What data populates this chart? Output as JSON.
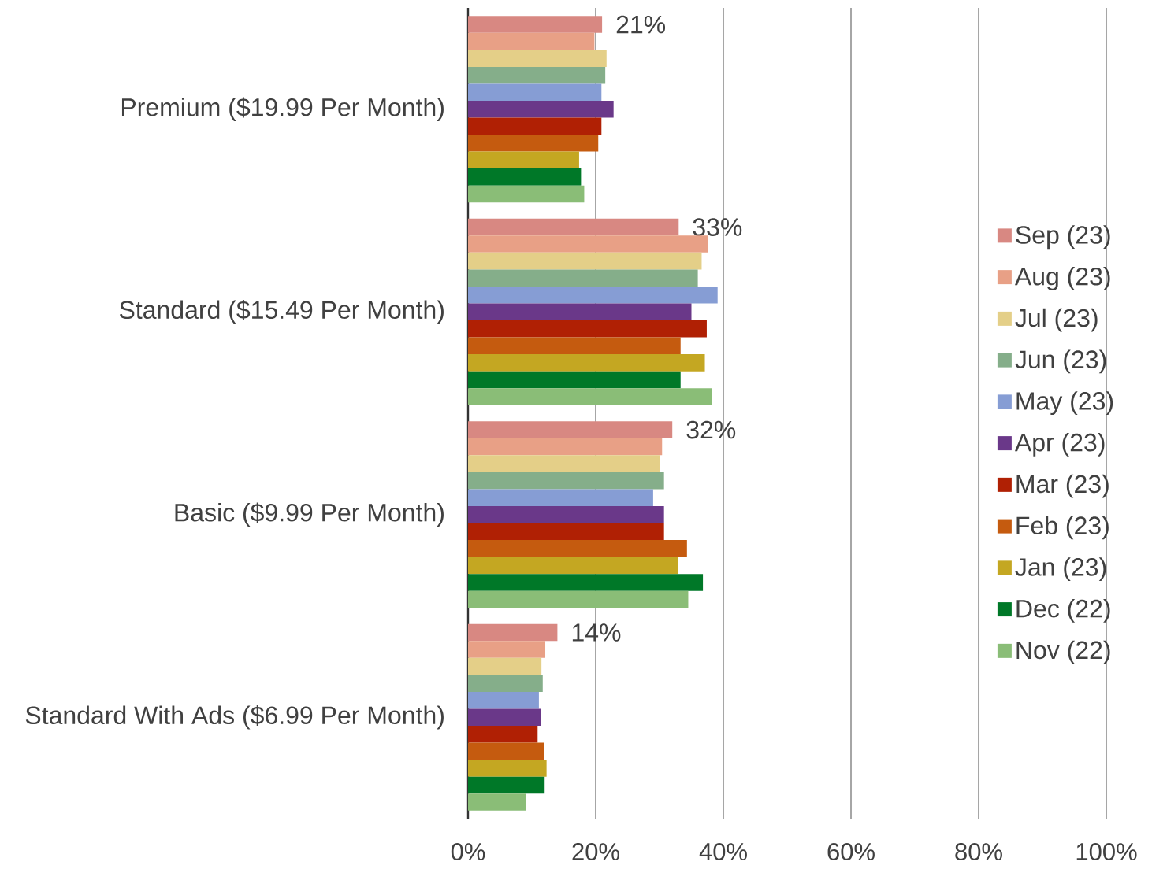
{
  "chart_data": {
    "type": "bar",
    "orientation": "horizontal",
    "categories": [
      "Premium ($19.99 Per Month)",
      "Standard ($15.49 Per Month)",
      "Basic ($9.99 Per Month)",
      "Standard With Ads ($6.99 Per Month)"
    ],
    "series": [
      {
        "name": "Sep (23)",
        "color": "#d88882",
        "values": [
          21,
          33,
          32,
          14
        ],
        "value_labels": [
          "21%",
          "33%",
          "32%",
          "14%"
        ]
      },
      {
        "name": "Aug (23)",
        "color": "#e8a086",
        "values": [
          19.8,
          37.6,
          30.4,
          12.1
        ]
      },
      {
        "name": "Jul (23)",
        "color": "#e4cf88",
        "values": [
          21.7,
          36.6,
          30.1,
          11.5
        ]
      },
      {
        "name": "Jun (23)",
        "color": "#85ae8a",
        "values": [
          21.5,
          36.0,
          30.7,
          11.7
        ]
      },
      {
        "name": "May (23)",
        "color": "#869dd4",
        "values": [
          20.9,
          39.1,
          29.0,
          11.1
        ]
      },
      {
        "name": "Apr (23)",
        "color": "#6a3889",
        "values": [
          22.8,
          35.0,
          30.7,
          11.4
        ]
      },
      {
        "name": "Mar (23)",
        "color": "#b02004",
        "values": [
          20.9,
          37.4,
          30.7,
          10.9
        ]
      },
      {
        "name": "Feb (23)",
        "color": "#c55b0f",
        "values": [
          20.4,
          33.3,
          34.3,
          11.9
        ]
      },
      {
        "name": "Jan (23)",
        "color": "#c4a722",
        "values": [
          17.4,
          37.1,
          32.9,
          12.3
        ]
      },
      {
        "name": "Dec (22)",
        "color": "#007828",
        "values": [
          17.7,
          33.3,
          36.8,
          12.0
        ]
      },
      {
        "name": "Nov (22)",
        "color": "#8abd77",
        "values": [
          18.2,
          38.2,
          34.5,
          9.1
        ]
      }
    ],
    "xlim": [
      0,
      100
    ],
    "xticks": [
      {
        "value": 0,
        "label": "0%"
      },
      {
        "value": 20,
        "label": "20%"
      },
      {
        "value": 40,
        "label": "40%"
      },
      {
        "value": 60,
        "label": "60%"
      },
      {
        "value": 80,
        "label": "80%"
      },
      {
        "value": 100,
        "label": "100%"
      }
    ],
    "grid": "x",
    "legend": "right"
  }
}
